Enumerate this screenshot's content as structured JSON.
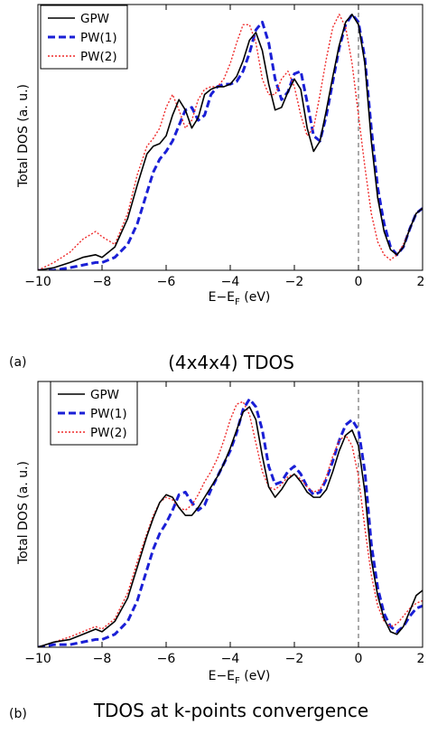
{
  "chart_data": [
    {
      "type": "line",
      "panel_label": "(a)",
      "caption": "(4x4x4) TDOS",
      "xlabel": "E−E",
      "xlabel_sub": "F",
      "xlabel_unit": " (eV)",
      "ylabel": "Total DOS (a. u.)",
      "xlim": [
        -10,
        2
      ],
      "ylim": [
        0,
        1.0
      ],
      "xticks": [
        -10,
        -8,
        -6,
        -4,
        -2,
        0,
        2
      ],
      "xtick_labels": [
        "−10",
        "−8",
        "−6",
        "−4",
        "−2",
        "0",
        "2"
      ],
      "fermi_line_x": 0,
      "legend_position": "top-left",
      "series": [
        {
          "name": "GPW",
          "color": "#000000",
          "style": "solid",
          "x": [
            -10,
            -9.5,
            -9,
            -8.6,
            -8.2,
            -8,
            -7.6,
            -7.2,
            -6.9,
            -6.6,
            -6.4,
            -6.2,
            -6.0,
            -5.8,
            -5.6,
            -5.4,
            -5.2,
            -5.0,
            -4.8,
            -4.6,
            -4.4,
            -4.2,
            -4.0,
            -3.8,
            -3.6,
            -3.4,
            -3.2,
            -3.0,
            -2.8,
            -2.6,
            -2.4,
            -2.2,
            -2.0,
            -1.8,
            -1.6,
            -1.4,
            -1.2,
            -1.0,
            -0.8,
            -0.6,
            -0.4,
            -0.2,
            0.0,
            0.2,
            0.4,
            0.6,
            0.8,
            1.0,
            1.2,
            1.4,
            1.6,
            1.8,
            2.0
          ],
          "y": [
            0.0,
            0.01,
            0.03,
            0.05,
            0.06,
            0.05,
            0.09,
            0.2,
            0.33,
            0.45,
            0.48,
            0.49,
            0.52,
            0.6,
            0.66,
            0.62,
            0.55,
            0.59,
            0.68,
            0.7,
            0.71,
            0.71,
            0.72,
            0.75,
            0.81,
            0.89,
            0.92,
            0.85,
            0.72,
            0.62,
            0.63,
            0.69,
            0.74,
            0.7,
            0.55,
            0.46,
            0.5,
            0.62,
            0.75,
            0.87,
            0.96,
            0.99,
            0.95,
            0.8,
            0.5,
            0.28,
            0.15,
            0.08,
            0.06,
            0.09,
            0.16,
            0.22,
            0.24
          ]
        },
        {
          "name": "PW(1)",
          "color": "#1a1fd6",
          "style": "dashed",
          "x": [
            -10,
            -9.5,
            -9,
            -8.6,
            -8.2,
            -8,
            -7.6,
            -7.2,
            -6.9,
            -6.6,
            -6.4,
            -6.2,
            -6.0,
            -5.8,
            -5.6,
            -5.4,
            -5.2,
            -5.0,
            -4.8,
            -4.6,
            -4.4,
            -4.2,
            -4.0,
            -3.8,
            -3.6,
            -3.4,
            -3.2,
            -3.0,
            -2.8,
            -2.6,
            -2.4,
            -2.2,
            -2.0,
            -1.8,
            -1.6,
            -1.4,
            -1.2,
            -1.0,
            -0.8,
            -0.6,
            -0.4,
            -0.2,
            0.0,
            0.2,
            0.4,
            0.6,
            0.8,
            1.0,
            1.2,
            1.4,
            1.6,
            1.8,
            2.0
          ],
          "y": [
            0.0,
            0.0,
            0.01,
            0.02,
            0.03,
            0.03,
            0.05,
            0.1,
            0.18,
            0.3,
            0.38,
            0.43,
            0.46,
            0.5,
            0.56,
            0.62,
            0.63,
            0.58,
            0.6,
            0.68,
            0.71,
            0.72,
            0.72,
            0.73,
            0.77,
            0.84,
            0.93,
            0.96,
            0.88,
            0.74,
            0.66,
            0.69,
            0.76,
            0.77,
            0.65,
            0.52,
            0.5,
            0.6,
            0.73,
            0.86,
            0.95,
            0.99,
            0.96,
            0.82,
            0.55,
            0.32,
            0.18,
            0.09,
            0.06,
            0.09,
            0.16,
            0.22,
            0.24
          ]
        },
        {
          "name": "PW(2)",
          "color": "#ef2b2b",
          "style": "dotted",
          "x": [
            -10,
            -9.5,
            -9,
            -8.6,
            -8.2,
            -8,
            -7.6,
            -7.2,
            -6.9,
            -6.6,
            -6.4,
            -6.2,
            -6.0,
            -5.8,
            -5.6,
            -5.4,
            -5.2,
            -5.0,
            -4.8,
            -4.6,
            -4.4,
            -4.2,
            -4.0,
            -3.8,
            -3.6,
            -3.4,
            -3.2,
            -3.0,
            -2.8,
            -2.6,
            -2.4,
            -2.2,
            -2.0,
            -1.8,
            -1.6,
            -1.4,
            -1.2,
            -1.0,
            -0.8,
            -0.6,
            -0.4,
            -0.2,
            0.0,
            0.2,
            0.4,
            0.6,
            0.8,
            1.0,
            1.2,
            1.4,
            1.6,
            1.8,
            2.0
          ],
          "y": [
            0.0,
            0.03,
            0.07,
            0.12,
            0.15,
            0.13,
            0.1,
            0.22,
            0.37,
            0.48,
            0.51,
            0.55,
            0.63,
            0.68,
            0.62,
            0.55,
            0.58,
            0.66,
            0.7,
            0.71,
            0.71,
            0.74,
            0.8,
            0.88,
            0.95,
            0.95,
            0.88,
            0.74,
            0.68,
            0.68,
            0.74,
            0.77,
            0.71,
            0.6,
            0.52,
            0.55,
            0.68,
            0.82,
            0.94,
            0.99,
            0.94,
            0.8,
            0.6,
            0.4,
            0.22,
            0.11,
            0.06,
            0.04,
            0.06,
            0.1,
            0.16,
            0.22,
            0.24
          ]
        }
      ]
    },
    {
      "type": "line",
      "panel_label": "(b)",
      "caption": "TDOS at k-points convergence",
      "xlabel": "E−E",
      "xlabel_sub": "F",
      "xlabel_unit": " (eV)",
      "ylabel": "Total DOS (a. u.)",
      "xlim": [
        -10,
        2
      ],
      "ylim": [
        0,
        1.0
      ],
      "xticks": [
        -10,
        -8,
        -6,
        -4,
        -2,
        0,
        2
      ],
      "xtick_labels": [
        "−10",
        "−8",
        "−6",
        "−4",
        "−2",
        "0",
        "2"
      ],
      "fermi_line_x": 0,
      "legend_position": "top-left",
      "series": [
        {
          "name": "GPW",
          "color": "#000000",
          "style": "solid",
          "x": [
            -10,
            -9.5,
            -9,
            -8.6,
            -8.2,
            -8,
            -7.6,
            -7.2,
            -6.9,
            -6.6,
            -6.4,
            -6.2,
            -6.0,
            -5.8,
            -5.6,
            -5.4,
            -5.2,
            -5.0,
            -4.8,
            -4.6,
            -4.4,
            -4.2,
            -4.0,
            -3.8,
            -3.6,
            -3.4,
            -3.2,
            -3.0,
            -2.8,
            -2.6,
            -2.4,
            -2.2,
            -2.0,
            -1.8,
            -1.6,
            -1.4,
            -1.2,
            -1.0,
            -0.8,
            -0.6,
            -0.4,
            -0.2,
            0.0,
            0.2,
            0.4,
            0.6,
            0.8,
            1.0,
            1.2,
            1.4,
            1.6,
            1.8,
            2.0
          ],
          "y": [
            0.0,
            0.02,
            0.03,
            0.05,
            0.07,
            0.06,
            0.1,
            0.19,
            0.31,
            0.43,
            0.5,
            0.56,
            0.59,
            0.58,
            0.54,
            0.51,
            0.51,
            0.54,
            0.58,
            0.62,
            0.66,
            0.71,
            0.77,
            0.84,
            0.91,
            0.93,
            0.88,
            0.74,
            0.62,
            0.58,
            0.61,
            0.65,
            0.67,
            0.64,
            0.6,
            0.58,
            0.58,
            0.61,
            0.68,
            0.76,
            0.82,
            0.84,
            0.78,
            0.6,
            0.34,
            0.2,
            0.11,
            0.06,
            0.05,
            0.08,
            0.14,
            0.2,
            0.22
          ]
        },
        {
          "name": "PW(1)",
          "color": "#1a1fd6",
          "style": "dashed",
          "x": [
            -10,
            -9.5,
            -9,
            -8.6,
            -8.2,
            -8,
            -7.6,
            -7.2,
            -6.9,
            -6.6,
            -6.4,
            -6.2,
            -6.0,
            -5.8,
            -5.6,
            -5.4,
            -5.2,
            -5.0,
            -4.8,
            -4.6,
            -4.4,
            -4.2,
            -4.0,
            -3.8,
            -3.6,
            -3.4,
            -3.2,
            -3.0,
            -2.8,
            -2.6,
            -2.4,
            -2.2,
            -2.0,
            -1.8,
            -1.6,
            -1.4,
            -1.2,
            -1.0,
            -0.8,
            -0.6,
            -0.4,
            -0.2,
            0.0,
            0.2,
            0.4,
            0.6,
            0.8,
            1.0,
            1.2,
            1.4,
            1.6,
            1.8,
            2.0
          ],
          "y": [
            0.0,
            0.01,
            0.01,
            0.02,
            0.03,
            0.03,
            0.05,
            0.1,
            0.18,
            0.3,
            0.38,
            0.44,
            0.48,
            0.53,
            0.59,
            0.6,
            0.56,
            0.53,
            0.55,
            0.61,
            0.66,
            0.71,
            0.76,
            0.83,
            0.92,
            0.96,
            0.93,
            0.84,
            0.7,
            0.63,
            0.64,
            0.68,
            0.7,
            0.67,
            0.62,
            0.59,
            0.6,
            0.65,
            0.72,
            0.8,
            0.86,
            0.88,
            0.84,
            0.68,
            0.4,
            0.23,
            0.13,
            0.08,
            0.06,
            0.08,
            0.12,
            0.15,
            0.16
          ]
        },
        {
          "name": "PW(2)",
          "color": "#ef2b2b",
          "style": "dotted",
          "x": [
            -10,
            -9.5,
            -9,
            -8.6,
            -8.2,
            -8,
            -7.6,
            -7.2,
            -6.9,
            -6.6,
            -6.4,
            -6.2,
            -6.0,
            -5.8,
            -5.6,
            -5.4,
            -5.2,
            -5.0,
            -4.8,
            -4.6,
            -4.4,
            -4.2,
            -4.0,
            -3.8,
            -3.6,
            -3.4,
            -3.2,
            -3.0,
            -2.8,
            -2.6,
            -2.4,
            -2.2,
            -2.0,
            -1.8,
            -1.6,
            -1.4,
            -1.2,
            -1.0,
            -0.8,
            -0.6,
            -0.4,
            -0.2,
            0.0,
            0.2,
            0.4,
            0.6,
            0.8,
            1.0,
            1.2,
            1.4,
            1.6,
            1.8,
            2.0
          ],
          "y": [
            0.0,
            0.02,
            0.04,
            0.06,
            0.08,
            0.07,
            0.11,
            0.21,
            0.33,
            0.44,
            0.51,
            0.56,
            0.58,
            0.57,
            0.54,
            0.53,
            0.55,
            0.59,
            0.64,
            0.68,
            0.73,
            0.8,
            0.88,
            0.94,
            0.95,
            0.9,
            0.79,
            0.68,
            0.62,
            0.61,
            0.63,
            0.66,
            0.67,
            0.65,
            0.62,
            0.6,
            0.61,
            0.66,
            0.74,
            0.8,
            0.82,
            0.78,
            0.66,
            0.46,
            0.28,
            0.16,
            0.1,
            0.08,
            0.09,
            0.12,
            0.15,
            0.17,
            0.18
          ]
        }
      ]
    }
  ]
}
